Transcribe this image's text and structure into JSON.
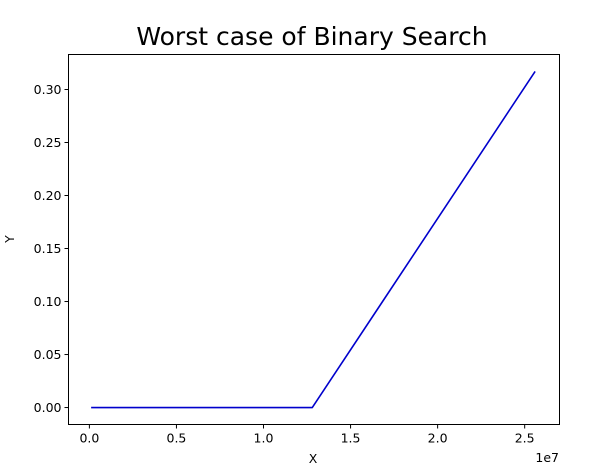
{
  "chart_data": {
    "type": "line",
    "title": "Worst case of Binary Search",
    "xlabel": "X",
    "ylabel": "Y",
    "x_offset_text": "1e7",
    "xlim": [
      -0.12,
      2.7
    ],
    "ylim": [
      -0.016,
      0.333
    ],
    "x_ticks": [
      0.0,
      0.5,
      1.0,
      1.5,
      2.0,
      2.5
    ],
    "x_tick_labels": [
      "0.0",
      "0.5",
      "1.0",
      "1.5",
      "2.0",
      "2.5"
    ],
    "y_ticks": [
      0.0,
      0.05,
      0.1,
      0.15,
      0.2,
      0.25,
      0.3
    ],
    "y_tick_labels": [
      "0.00",
      "0.05",
      "0.10",
      "0.15",
      "0.20",
      "0.25",
      "0.30"
    ],
    "grid": false,
    "series": [
      {
        "color": "#0000cc",
        "x": [
          0.01,
          1.28,
          2.56
        ],
        "y": [
          0.0,
          0.0,
          0.317
        ]
      }
    ]
  }
}
